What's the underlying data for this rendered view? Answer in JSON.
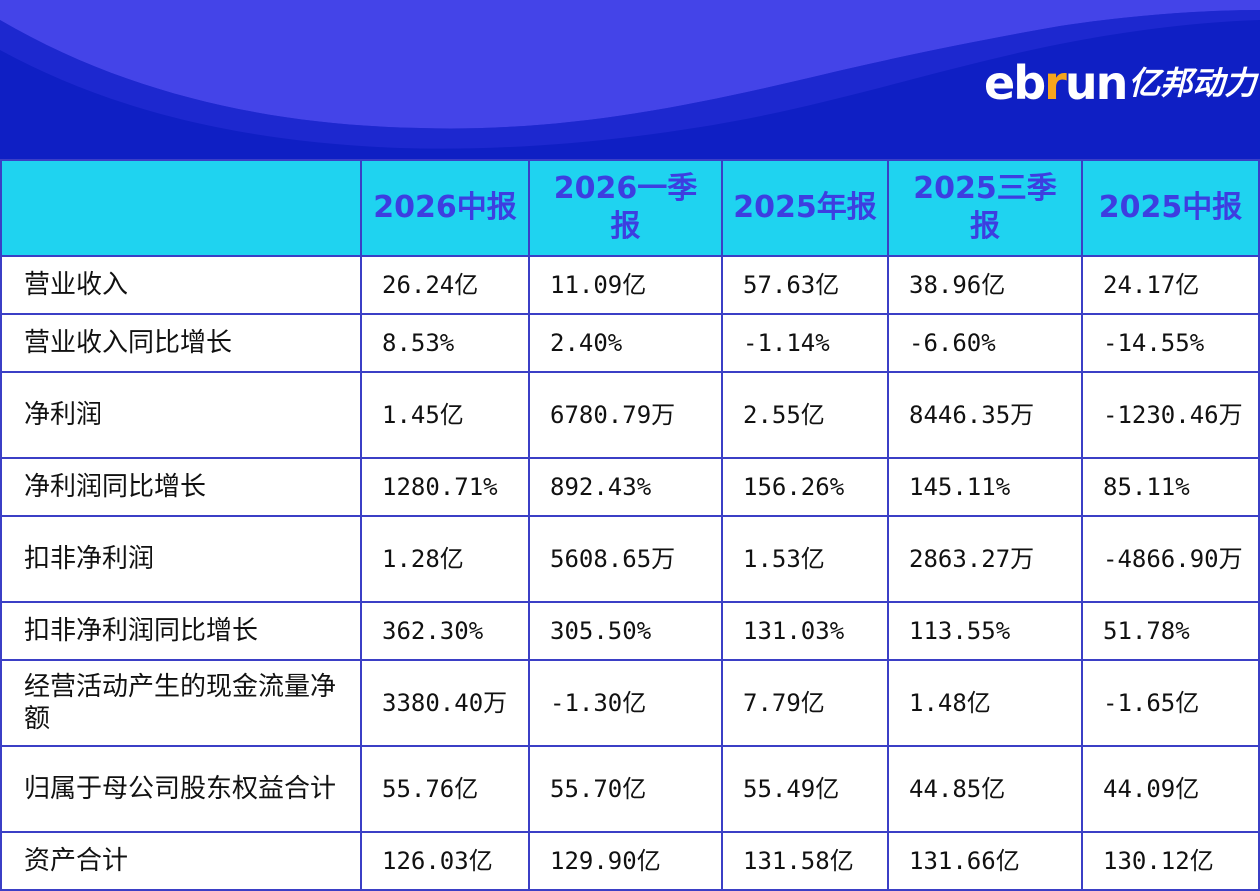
{
  "brand": {
    "logo_text_main": "ebrun",
    "logo_text_cn": "亿邦动力",
    "colors": {
      "banner": "#0f1fc4",
      "wave": "#4040e6",
      "header_bg": "#1fd3f0",
      "header_text": "#3d3ee0",
      "accent": "#f7a51c",
      "grid": "#3b3fc6"
    }
  },
  "table": {
    "columns": [
      "",
      "2026中报",
      "2026一季报",
      "2025年报",
      "2025三季报",
      "2025中报"
    ],
    "rows": [
      {
        "label": "营业收入",
        "values": [
          "26.24亿",
          "11.09亿",
          "57.63亿",
          "38.96亿",
          "24.17亿"
        ]
      },
      {
        "label": "营业收入同比增长",
        "values": [
          "8.53%",
          "2.40%",
          "-1.14%",
          "-6.60%",
          "-14.55%"
        ]
      },
      {
        "label": "净利润",
        "values": [
          "1.45亿",
          "6780.79万",
          "2.55亿",
          "8446.35万",
          "-1230.46万"
        ]
      },
      {
        "label": "净利润同比增长",
        "values": [
          "1280.71%",
          "892.43%",
          "156.26%",
          "145.11%",
          "85.11%"
        ]
      },
      {
        "label": "扣非净利润",
        "values": [
          "1.28亿",
          "5608.65万",
          "1.53亿",
          "2863.27万",
          "-4866.90万"
        ]
      },
      {
        "label": "扣非净利润同比增长",
        "values": [
          "362.30%",
          "305.50%",
          "131.03%",
          "113.55%",
          "51.78%"
        ]
      },
      {
        "label": "经营活动产生的现金流量净额",
        "values": [
          "3380.40万",
          "-1.30亿",
          "7.79亿",
          "1.48亿",
          "-1.65亿"
        ]
      },
      {
        "label": "归属于母公司股东权益合计",
        "values": [
          "55.76亿",
          "55.70亿",
          "55.49亿",
          "44.85亿",
          "44.09亿"
        ]
      },
      {
        "label": "资产合计",
        "values": [
          "126.03亿",
          "129.90亿",
          "131.58亿",
          "131.66亿",
          "130.12亿"
        ]
      }
    ]
  }
}
